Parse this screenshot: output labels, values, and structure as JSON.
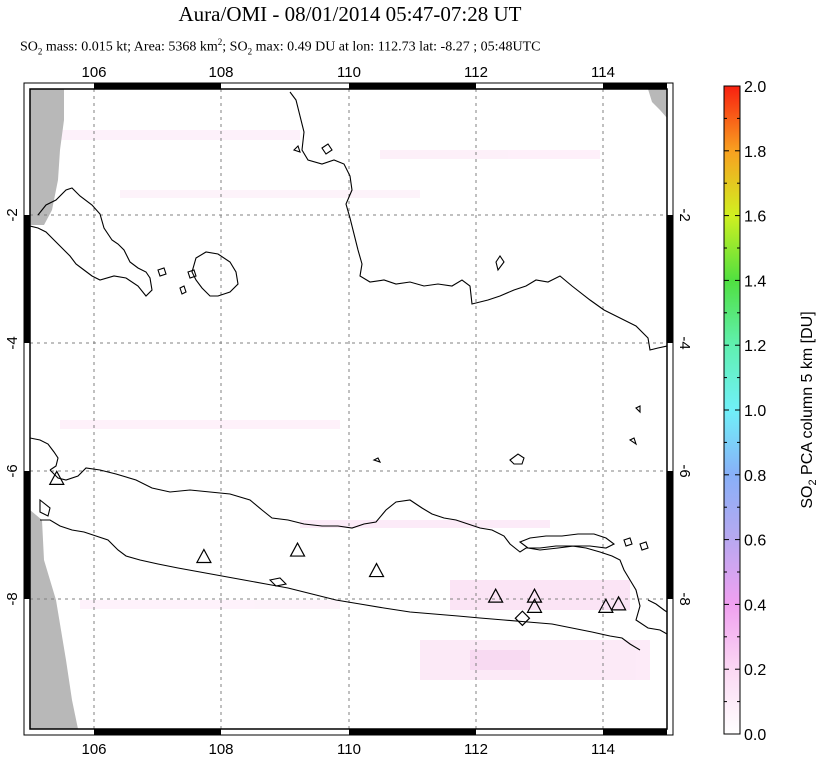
{
  "header": {
    "title": "Aura/OMI - 08/01/2014 05:47-07:28 UT",
    "subtitle_pre": "SO",
    "subtitle_sub1": "2",
    "subtitle_mid1": " mass: 0.015 kt; Area: 5368 km",
    "subtitle_sup": "2",
    "subtitle_mid2": "; SO",
    "subtitle_sub2": "2",
    "subtitle_post": " max: 0.49 DU at lon: 112.73 lat: -8.27 ; 05:48UTC"
  },
  "map": {
    "lon_range": [
      105.0,
      115.0
    ],
    "lat_range": [
      -10.0,
      0.0
    ],
    "lon_ticks": [
      "106",
      "108",
      "110",
      "112",
      "114"
    ],
    "lat_ticks": [
      "-2",
      "-4",
      "-6",
      "-8"
    ],
    "volcanoes": [
      {
        "lon": 105.42,
        "lat": -6.1
      },
      {
        "lon": 107.73,
        "lat": -7.32
      },
      {
        "lon": 109.2,
        "lat": -7.22
      },
      {
        "lon": 110.44,
        "lat": -7.54
      },
      {
        "lon": 112.31,
        "lat": -7.94
      },
      {
        "lon": 112.92,
        "lat": -7.94
      },
      {
        "lon": 112.92,
        "lat": -8.1
      },
      {
        "lon": 114.04,
        "lat": -8.1
      },
      {
        "lon": 114.24,
        "lat": -8.06
      }
    ],
    "max_marker": {
      "lon": 112.73,
      "lat": -8.27
    },
    "colors": {
      "no_data": "#b8b8b8",
      "coast": "#000000",
      "grid": "#808080"
    }
  },
  "colorbar": {
    "label_pre": "SO",
    "label_sub": "2",
    "label_post": " PCA column 5 km [DU]",
    "ticks": [
      "0.0",
      "0.2",
      "0.4",
      "0.6",
      "0.8",
      "1.0",
      "1.2",
      "1.4",
      "1.6",
      "1.8",
      "2.0"
    ],
    "range": [
      0.0,
      2.0
    ]
  }
}
